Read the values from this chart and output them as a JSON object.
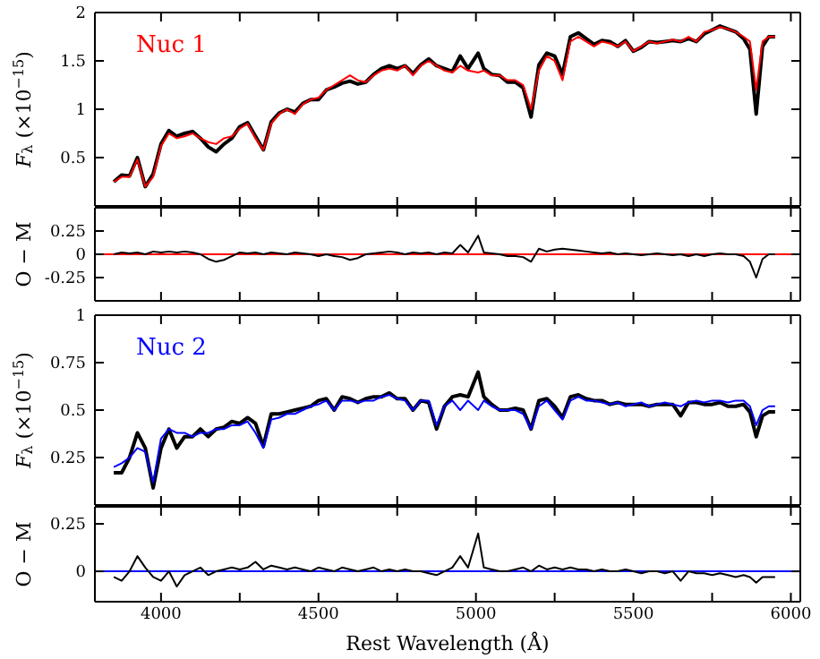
{
  "chart_data": [
    {
      "type": "line",
      "ylabel": "F$_{λ}$ (×10$^{−15}$)",
      "x": [
        3850,
        3875,
        3900,
        3925,
        3950,
        3975,
        4000,
        4025,
        4050,
        4075,
        4100,
        4125,
        4150,
        4175,
        4200,
        4225,
        4250,
        4275,
        4300,
        4325,
        4350,
        4375,
        4400,
        4425,
        4450,
        4475,
        4500,
        4525,
        4550,
        4575,
        4600,
        4625,
        4650,
        4675,
        4700,
        4725,
        4750,
        4775,
        4800,
        4825,
        4850,
        4875,
        4900,
        4925,
        4950,
        4975,
        5007,
        5025,
        5050,
        5075,
        5100,
        5125,
        5150,
        5175,
        5200,
        5225,
        5250,
        5275,
        5300,
        5325,
        5350,
        5375,
        5400,
        5425,
        5450,
        5475,
        5500,
        5525,
        5550,
        5575,
        5600,
        5625,
        5650,
        5675,
        5700,
        5725,
        5750,
        5775,
        5800,
        5825,
        5850,
        5870,
        5890,
        5910,
        5930,
        5950
      ],
      "xlim": [
        3790,
        6030
      ],
      "xticks": [
        4000,
        {
          "value": 4250,
          "label": null
        },
        4500,
        {
          "value": 4750,
          "label": null
        },
        5000,
        {
          "value": 5250,
          "label": null
        },
        5500,
        {
          "value": 5750,
          "label": null
        },
        6000
      ],
      "ylim": [
        0,
        2
      ],
      "yticks": [
        0.5,
        1,
        1.5,
        2
      ],
      "tick_labels": "y",
      "line_style": "solid",
      "marker": "none",
      "series": [
        {
          "color": "#000000",
          "values": [
            0.25,
            0.32,
            0.31,
            0.5,
            0.2,
            0.33,
            0.64,
            0.78,
            0.72,
            0.75,
            0.77,
            0.7,
            0.61,
            0.56,
            0.64,
            0.7,
            0.82,
            0.86,
            0.72,
            0.58,
            0.87,
            0.96,
            1.0,
            0.97,
            1.06,
            1.1,
            1.1,
            1.2,
            1.23,
            1.27,
            1.29,
            1.26,
            1.28,
            1.36,
            1.42,
            1.45,
            1.42,
            1.45,
            1.37,
            1.46,
            1.52,
            1.45,
            1.42,
            1.39,
            1.55,
            1.42,
            1.58,
            1.42,
            1.36,
            1.35,
            1.28,
            1.28,
            1.22,
            0.92,
            1.46,
            1.58,
            1.55,
            1.36,
            1.75,
            1.79,
            1.73,
            1.67,
            1.71,
            1.7,
            1.65,
            1.71,
            1.6,
            1.64,
            1.7,
            1.69,
            1.7,
            1.71,
            1.7,
            1.73,
            1.7,
            1.78,
            1.82,
            1.86,
            1.83,
            1.8,
            1.73,
            1.62,
            0.95,
            1.65,
            1.75,
            1.75
          ]
        },
        {
          "name": "Nuc 1",
          "color": "#ff0000",
          "values": [
            0.25,
            0.3,
            0.3,
            0.48,
            0.2,
            0.3,
            0.62,
            0.75,
            0.7,
            0.72,
            0.75,
            0.7,
            0.66,
            0.64,
            0.7,
            0.72,
            0.8,
            0.85,
            0.7,
            0.58,
            0.85,
            0.95,
            1.0,
            0.95,
            1.05,
            1.1,
            1.12,
            1.2,
            1.25,
            1.3,
            1.35,
            1.3,
            1.28,
            1.35,
            1.4,
            1.42,
            1.4,
            1.45,
            1.35,
            1.45,
            1.5,
            1.45,
            1.4,
            1.38,
            1.45,
            1.4,
            1.38,
            1.4,
            1.35,
            1.35,
            1.3,
            1.3,
            1.25,
            1.0,
            1.4,
            1.55,
            1.5,
            1.3,
            1.7,
            1.75,
            1.7,
            1.65,
            1.7,
            1.68,
            1.65,
            1.7,
            1.6,
            1.65,
            1.7,
            1.68,
            1.7,
            1.72,
            1.7,
            1.75,
            1.7,
            1.8,
            1.82,
            1.85,
            1.83,
            1.8,
            1.75,
            1.7,
            1.2,
            1.7,
            1.75,
            1.75
          ]
        }
      ]
    },
    {
      "type": "line",
      "ylabel": "O − M",
      "x": [
        3850,
        3875,
        3900,
        3925,
        3950,
        3975,
        4000,
        4025,
        4050,
        4075,
        4100,
        4125,
        4150,
        4175,
        4200,
        4225,
        4250,
        4275,
        4300,
        4325,
        4350,
        4375,
        4400,
        4425,
        4450,
        4475,
        4500,
        4525,
        4550,
        4575,
        4600,
        4625,
        4650,
        4675,
        4700,
        4725,
        4750,
        4775,
        4800,
        4825,
        4850,
        4875,
        4900,
        4925,
        4950,
        4975,
        5007,
        5025,
        5050,
        5075,
        5100,
        5125,
        5150,
        5175,
        5200,
        5225,
        5250,
        5275,
        5300,
        5325,
        5350,
        5375,
        5400,
        5425,
        5450,
        5475,
        5500,
        5525,
        5550,
        5575,
        5600,
        5625,
        5650,
        5675,
        5700,
        5725,
        5750,
        5775,
        5800,
        5825,
        5850,
        5870,
        5890,
        5910,
        5930,
        5950
      ],
      "xlim": [
        3790,
        6030
      ],
      "xticks": [
        4000,
        {
          "value": 4250,
          "label": null
        },
        4500,
        {
          "value": 4750,
          "label": null
        },
        5000,
        {
          "value": 5250,
          "label": null
        },
        5500,
        {
          "value": 5750,
          "label": null
        },
        6000
      ],
      "ylim": [
        -0.5,
        0.5
      ],
      "yticks": [
        -0.25,
        0,
        0.25
      ],
      "tick_labels": "y",
      "line_style": "solid",
      "marker": "none",
      "ref_lines": [
        {
          "axis": "y",
          "value": 0,
          "color": "#ff0000"
        }
      ],
      "series": [
        {
          "color": "#000000",
          "values": [
            0.0,
            0.02,
            0.01,
            0.02,
            0.0,
            0.03,
            0.02,
            0.03,
            0.02,
            0.03,
            0.02,
            0.0,
            -0.05,
            -0.08,
            -0.06,
            -0.02,
            0.02,
            0.01,
            0.02,
            0.0,
            0.02,
            0.01,
            0.0,
            0.02,
            0.01,
            0.0,
            -0.02,
            0.0,
            -0.02,
            -0.03,
            -0.06,
            -0.04,
            0.0,
            0.01,
            0.02,
            0.03,
            0.02,
            0.0,
            0.02,
            0.01,
            0.02,
            0.0,
            0.02,
            0.01,
            0.1,
            0.02,
            0.2,
            0.02,
            0.01,
            0.0,
            -0.02,
            -0.02,
            -0.03,
            -0.08,
            0.06,
            0.03,
            0.05,
            0.06,
            0.05,
            0.04,
            0.03,
            0.02,
            0.01,
            0.02,
            0.0,
            0.01,
            0.0,
            -0.01,
            0.0,
            0.01,
            0.0,
            -0.01,
            0.0,
            -0.02,
            0.0,
            -0.02,
            0.0,
            0.01,
            0.0,
            0.0,
            -0.02,
            -0.08,
            -0.25,
            -0.05,
            0.0,
            0.0
          ]
        }
      ]
    },
    {
      "type": "line",
      "ylabel": "F$_{λ}$ (×10$^{−15}$)",
      "x": [
        3850,
        3875,
        3900,
        3925,
        3950,
        3975,
        4000,
        4025,
        4050,
        4075,
        4100,
        4125,
        4150,
        4175,
        4200,
        4225,
        4250,
        4275,
        4300,
        4325,
        4350,
        4375,
        4400,
        4425,
        4450,
        4475,
        4500,
        4525,
        4550,
        4575,
        4600,
        4625,
        4650,
        4675,
        4700,
        4725,
        4750,
        4775,
        4800,
        4825,
        4850,
        4875,
        4900,
        4925,
        4950,
        4975,
        5007,
        5025,
        5050,
        5075,
        5100,
        5125,
        5150,
        5175,
        5200,
        5225,
        5250,
        5275,
        5300,
        5325,
        5350,
        5375,
        5400,
        5425,
        5450,
        5475,
        5500,
        5525,
        5550,
        5575,
        5600,
        5625,
        5650,
        5675,
        5700,
        5725,
        5750,
        5775,
        5800,
        5825,
        5850,
        5870,
        5890,
        5910,
        5930,
        5950
      ],
      "xlim": [
        3790,
        6030
      ],
      "xticks": [
        4000,
        {
          "value": 4250,
          "label": null
        },
        4500,
        {
          "value": 4750,
          "label": null
        },
        5000,
        {
          "value": 5250,
          "label": null
        },
        5500,
        {
          "value": 5750,
          "label": null
        },
        6000
      ],
      "ylim": [
        0,
        1
      ],
      "yticks": [
        0.25,
        0.5,
        0.75,
        1
      ],
      "tick_labels": "y",
      "line_style": "solid",
      "marker": "none",
      "series": [
        {
          "color": "#000000",
          "values": [
            0.17,
            0.17,
            0.25,
            0.38,
            0.3,
            0.09,
            0.3,
            0.4,
            0.3,
            0.36,
            0.36,
            0.4,
            0.36,
            0.4,
            0.41,
            0.44,
            0.43,
            0.46,
            0.43,
            0.31,
            0.48,
            0.48,
            0.49,
            0.5,
            0.51,
            0.52,
            0.55,
            0.56,
            0.5,
            0.57,
            0.56,
            0.54,
            0.56,
            0.57,
            0.57,
            0.59,
            0.56,
            0.56,
            0.5,
            0.55,
            0.54,
            0.4,
            0.52,
            0.57,
            0.58,
            0.57,
            0.7,
            0.57,
            0.53,
            0.5,
            0.5,
            0.51,
            0.5,
            0.4,
            0.55,
            0.56,
            0.52,
            0.46,
            0.57,
            0.58,
            0.56,
            0.55,
            0.55,
            0.53,
            0.54,
            0.53,
            0.53,
            0.53,
            0.52,
            0.53,
            0.53,
            0.53,
            0.47,
            0.54,
            0.54,
            0.53,
            0.53,
            0.54,
            0.52,
            0.52,
            0.53,
            0.49,
            0.36,
            0.47,
            0.49,
            0.49
          ]
        },
        {
          "name": "Nuc 2",
          "color": "#0000ff",
          "values": [
            0.2,
            0.22,
            0.25,
            0.3,
            0.28,
            0.12,
            0.35,
            0.4,
            0.38,
            0.38,
            0.36,
            0.38,
            0.38,
            0.4,
            0.4,
            0.42,
            0.42,
            0.44,
            0.38,
            0.3,
            0.45,
            0.46,
            0.48,
            0.48,
            0.5,
            0.52,
            0.53,
            0.55,
            0.5,
            0.55,
            0.55,
            0.54,
            0.55,
            0.55,
            0.57,
            0.58,
            0.56,
            0.55,
            0.5,
            0.55,
            0.55,
            0.42,
            0.52,
            0.55,
            0.5,
            0.55,
            0.5,
            0.55,
            0.52,
            0.5,
            0.5,
            0.5,
            0.48,
            0.4,
            0.52,
            0.55,
            0.5,
            0.45,
            0.55,
            0.57,
            0.55,
            0.55,
            0.54,
            0.53,
            0.54,
            0.52,
            0.53,
            0.54,
            0.52,
            0.53,
            0.54,
            0.53,
            0.52,
            0.54,
            0.55,
            0.54,
            0.55,
            0.55,
            0.54,
            0.55,
            0.55,
            0.52,
            0.42,
            0.5,
            0.52,
            0.52
          ]
        }
      ]
    },
    {
      "type": "line",
      "ylabel": "O − M",
      "xlabel": "Rest Wavelength (Å)",
      "x": [
        3850,
        3875,
        3900,
        3925,
        3950,
        3975,
        4000,
        4025,
        4050,
        4075,
        4100,
        4125,
        4150,
        4175,
        4200,
        4225,
        4250,
        4275,
        4300,
        4325,
        4350,
        4375,
        4400,
        4425,
        4450,
        4475,
        4500,
        4525,
        4550,
        4575,
        4600,
        4625,
        4650,
        4675,
        4700,
        4725,
        4750,
        4775,
        4800,
        4825,
        4850,
        4875,
        4900,
        4925,
        4950,
        4975,
        5007,
        5025,
        5050,
        5075,
        5100,
        5125,
        5150,
        5175,
        5200,
        5225,
        5250,
        5275,
        5300,
        5325,
        5350,
        5375,
        5400,
        5425,
        5450,
        5475,
        5500,
        5525,
        5550,
        5575,
        5600,
        5625,
        5650,
        5675,
        5700,
        5725,
        5750,
        5775,
        5800,
        5825,
        5850,
        5870,
        5890,
        5910,
        5930,
        5950
      ],
      "xlim": [
        3790,
        6030
      ],
      "xticks": [
        4000,
        {
          "value": 4250,
          "label": null
        },
        4500,
        {
          "value": 4750,
          "label": null
        },
        5000,
        {
          "value": 5250,
          "label": null
        },
        5500,
        {
          "value": 5750,
          "label": null
        },
        6000
      ],
      "ylim": [
        -0.16,
        0.34
      ],
      "yticks": [
        0,
        0.25
      ],
      "line_style": "solid",
      "marker": "none",
      "ref_lines": [
        {
          "axis": "y",
          "value": 0,
          "color": "#0000ff"
        }
      ],
      "series": [
        {
          "color": "#000000",
          "values": [
            -0.03,
            -0.05,
            0.0,
            0.08,
            0.02,
            -0.03,
            -0.05,
            0.0,
            -0.08,
            -0.02,
            0.0,
            0.02,
            -0.02,
            0.0,
            0.01,
            0.02,
            0.01,
            0.02,
            0.05,
            0.01,
            0.03,
            0.02,
            0.01,
            0.02,
            0.01,
            0.0,
            0.02,
            0.01,
            0.0,
            0.02,
            0.01,
            0.0,
            0.01,
            0.02,
            0.0,
            0.01,
            0.0,
            0.01,
            0.0,
            0.0,
            -0.01,
            -0.02,
            0.0,
            0.02,
            0.08,
            0.02,
            0.2,
            0.02,
            0.01,
            0.0,
            0.0,
            0.01,
            0.02,
            0.0,
            0.03,
            0.01,
            0.02,
            0.01,
            0.02,
            0.01,
            0.01,
            0.0,
            0.01,
            0.0,
            0.0,
            0.01,
            0.0,
            -0.01,
            0.0,
            0.0,
            -0.01,
            0.0,
            -0.05,
            0.0,
            -0.01,
            -0.01,
            -0.02,
            -0.01,
            -0.02,
            -0.03,
            -0.02,
            -0.03,
            -0.06,
            -0.03,
            -0.03,
            -0.03
          ]
        }
      ]
    }
  ]
}
